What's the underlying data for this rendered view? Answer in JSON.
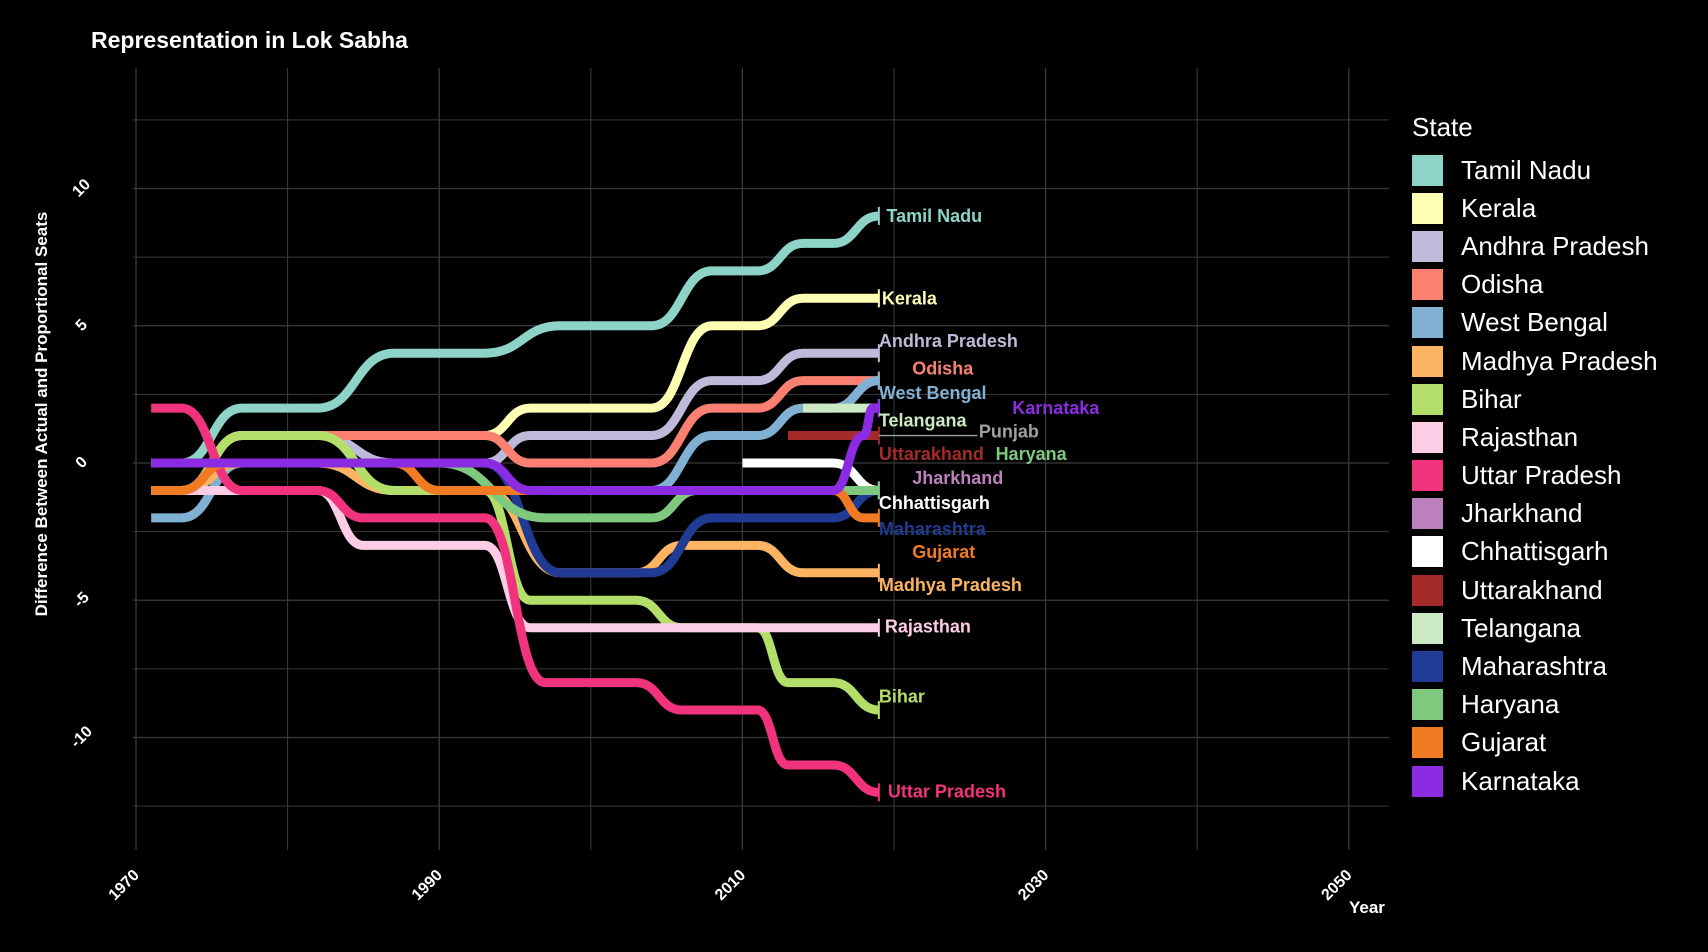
{
  "colors": {
    "background": "#000000",
    "grid": "#3b3b3b",
    "text": "#ffffff"
  },
  "chart_data": {
    "type": "line",
    "title": "Representation in Lok Sabha",
    "xlabel": "Year",
    "ylabel": "Difference Between Actual and Proportional Seats",
    "xlim": [
      1967,
      2053
    ],
    "ylim": [
      -13.5,
      13
    ],
    "xticks": [
      "1970",
      "1990",
      "2010",
      "2030",
      "2050"
    ],
    "yticks": [
      "10",
      "5",
      "0",
      "-5",
      "-10"
    ],
    "grid": true,
    "legend_title": "State",
    "legend_position": "right",
    "series": [
      {
        "name": "Tamil Nadu",
        "color": "#8dd3c7",
        "points": [
          [
            1971,
            0
          ],
          [
            1973,
            0
          ],
          [
            1977,
            2
          ],
          [
            1982,
            2
          ],
          [
            1987,
            4
          ],
          [
            1993,
            4
          ],
          [
            1998,
            5
          ],
          [
            2004,
            5
          ],
          [
            2008,
            7
          ],
          [
            2011,
            7
          ],
          [
            2014,
            8
          ],
          [
            2016,
            8
          ],
          [
            2019,
            9
          ]
        ]
      },
      {
        "name": "Kerala",
        "color": "#ffffb3",
        "points": [
          [
            1971,
            -1
          ],
          [
            1973,
            -1
          ],
          [
            1977,
            1
          ],
          [
            1993,
            1
          ],
          [
            1996,
            2
          ],
          [
            2004,
            2
          ],
          [
            2008,
            5
          ],
          [
            2011,
            5
          ],
          [
            2014,
            6
          ],
          [
            2019,
            6
          ]
        ]
      },
      {
        "name": "Andhra Pradesh",
        "color": "#bebada",
        "points": [
          [
            1971,
            -1
          ],
          [
            1973,
            -1
          ],
          [
            1977,
            1
          ],
          [
            1982,
            1
          ],
          [
            1987,
            0
          ],
          [
            1993,
            0
          ],
          [
            1996,
            1
          ],
          [
            2004,
            1
          ],
          [
            2008,
            3
          ],
          [
            2011,
            3
          ],
          [
            2014,
            4
          ],
          [
            2019,
            4
          ]
        ]
      },
      {
        "name": "Odisha",
        "color": "#fb8072",
        "points": [
          [
            1971,
            -1
          ],
          [
            1973,
            -1
          ],
          [
            1977,
            1
          ],
          [
            1993,
            1
          ],
          [
            1996,
            0
          ],
          [
            2004,
            0
          ],
          [
            2008,
            2
          ],
          [
            2011,
            2
          ],
          [
            2014,
            3
          ],
          [
            2019,
            3
          ]
        ]
      },
      {
        "name": "West Bengal",
        "color": "#80b1d3",
        "points": [
          [
            1971,
            -2
          ],
          [
            1973,
            -2
          ],
          [
            1977,
            0
          ],
          [
            1982,
            0
          ],
          [
            1987,
            -1
          ],
          [
            2004,
            -1
          ],
          [
            2008,
            1
          ],
          [
            2011,
            1
          ],
          [
            2014,
            2
          ],
          [
            2016,
            2
          ],
          [
            2019,
            3
          ]
        ]
      },
      {
        "name": "Madhya Pradesh",
        "color": "#fdb462",
        "points": [
          [
            1971,
            -1
          ],
          [
            1973,
            -1
          ],
          [
            1977,
            0
          ],
          [
            1982,
            0
          ],
          [
            1987,
            -1
          ],
          [
            1993,
            -1
          ],
          [
            1998,
            -4
          ],
          [
            2003,
            -4
          ],
          [
            2006,
            -3
          ],
          [
            2011,
            -3
          ],
          [
            2014,
            -4
          ],
          [
            2019,
            -4
          ]
        ]
      },
      {
        "name": "Bihar",
        "color": "#b3de69",
        "points": [
          [
            1971,
            -1
          ],
          [
            1973,
            -1
          ],
          [
            1977,
            1
          ],
          [
            1982,
            1
          ],
          [
            1987,
            -1
          ],
          [
            1993,
            -1
          ],
          [
            1996,
            -5
          ],
          [
            2003,
            -5
          ],
          [
            2006,
            -6
          ],
          [
            2011,
            -6
          ],
          [
            2013,
            -8
          ],
          [
            2016,
            -8
          ],
          [
            2019,
            -9
          ]
        ]
      },
      {
        "name": "Rajasthan",
        "color": "#fccde5",
        "points": [
          [
            1971,
            -1
          ],
          [
            1973,
            -1
          ],
          [
            1977,
            -1
          ],
          [
            1982,
            -1
          ],
          [
            1985,
            -3
          ],
          [
            1993,
            -3
          ],
          [
            1996,
            -6
          ],
          [
            2019,
            -6
          ]
        ]
      },
      {
        "name": "Uttar Pradesh",
        "color": "#f0337c",
        "points": [
          [
            1971,
            2
          ],
          [
            1973,
            2
          ],
          [
            1977,
            -1
          ],
          [
            1982,
            -1
          ],
          [
            1985,
            -2
          ],
          [
            1993,
            -2
          ],
          [
            1997,
            -8
          ],
          [
            2003,
            -8
          ],
          [
            2006,
            -9
          ],
          [
            2011,
            -9
          ],
          [
            2013,
            -11
          ],
          [
            2016,
            -11
          ],
          [
            2019,
            -12
          ]
        ]
      },
      {
        "name": "Jharkhand",
        "color": "#bc80bd",
        "points": [
          [
            2000,
            -1
          ],
          [
            2019,
            -1
          ]
        ]
      },
      {
        "name": "Chhattisgarh",
        "color": "#ffffff",
        "points": [
          [
            2010,
            0
          ],
          [
            2016,
            0
          ],
          [
            2019,
            -1
          ]
        ]
      },
      {
        "name": "Uttarakhand",
        "color": "#a52a2a",
        "points": [
          [
            2013,
            1
          ],
          [
            2019,
            1
          ]
        ]
      },
      {
        "name": "Telangana",
        "color": "#ccebc5",
        "points": [
          [
            2014,
            2
          ],
          [
            2019,
            2
          ]
        ]
      },
      {
        "name": "Maharashtra",
        "color": "#1f3b94",
        "points": [
          [
            1971,
            0
          ],
          [
            1993,
            0
          ],
          [
            1998,
            -4
          ],
          [
            2004,
            -4
          ],
          [
            2008,
            -2
          ],
          [
            2016,
            -2
          ],
          [
            2019,
            -1
          ]
        ]
      },
      {
        "name": "Haryana",
        "color": "#7fc97f",
        "points": [
          [
            1971,
            0
          ],
          [
            1990,
            0
          ],
          [
            1997,
            -2
          ],
          [
            2004,
            -2
          ],
          [
            2007,
            -1
          ],
          [
            2019,
            -1
          ]
        ]
      },
      {
        "name": "Gujarat",
        "color": "#f17b23",
        "points": [
          [
            1971,
            -1
          ],
          [
            1973,
            -1
          ],
          [
            1976,
            0
          ],
          [
            1987,
            0
          ],
          [
            1990,
            -1
          ],
          [
            2016,
            -1
          ],
          [
            2018,
            -2
          ],
          [
            2019,
            -2
          ]
        ]
      },
      {
        "name": "Karnataka",
        "color": "#8b2be2",
        "points": [
          [
            1971,
            0
          ],
          [
            1985,
            0
          ],
          [
            1988,
            0
          ],
          [
            1993,
            0
          ],
          [
            1996,
            -1
          ],
          [
            2016,
            -1
          ],
          [
            2018,
            1
          ],
          [
            2018.6,
            2
          ],
          [
            2019,
            2
          ]
        ]
      }
    ],
    "labels": [
      {
        "text": "Tamil Nadu",
        "color": "#8dd3c7",
        "x": 2019.5,
        "y": 9
      },
      {
        "text": "Kerala",
        "color": "#ffffb3",
        "x": 2019.2,
        "y": 6
      },
      {
        "text": "Andhra Pradesh",
        "color": "#bebada",
        "x": 2019,
        "y": 4.45
      },
      {
        "text": "Odisha",
        "color": "#fb8072",
        "x": 2021.2,
        "y": 3.45
      },
      {
        "text": "West Bengal",
        "color": "#80b1d3",
        "x": 2019,
        "y": 2.55
      },
      {
        "text": "Karnataka",
        "color": "#8b2be2",
        "x": 2027.8,
        "y": 2.0
      },
      {
        "text": "Telangana",
        "color": "#ccebc5",
        "x": 2019,
        "y": 1.55
      },
      {
        "text": "Punjab",
        "color": "#a0a0a0",
        "x": 2025.6,
        "y": 1.15
      },
      {
        "text": "Uttarakhand",
        "color": "#a52a2a",
        "x": 2019,
        "y": 0.32
      },
      {
        "text": "Haryana",
        "color": "#7fc97f",
        "x": 2026.7,
        "y": 0.32
      },
      {
        "text": "Jharkhand",
        "color": "#bc80bd",
        "x": 2021.2,
        "y": -0.55
      },
      {
        "text": "Chhattisgarh",
        "color": "#ffffff",
        "x": 2019,
        "y": -1.45
      },
      {
        "text": "Maharashtra",
        "color": "#1f3b94",
        "x": 2019,
        "y": -2.4
      },
      {
        "text": "Gujarat",
        "color": "#f17b23",
        "x": 2021.2,
        "y": -3.25
      },
      {
        "text": "Madhya Pradesh",
        "color": "#fdb462",
        "x": 2019,
        "y": -4.45
      },
      {
        "text": "Rajasthan",
        "color": "#fccde5",
        "x": 2019.4,
        "y": -5.95
      },
      {
        "text": "Bihar",
        "color": "#b3de69",
        "x": 2019,
        "y": -8.5
      },
      {
        "text": "Uttar Pradesh",
        "color": "#f0337c",
        "x": 2019.6,
        "y": -11.97
      }
    ],
    "punjab_segment": {
      "color": "#a0a0a0",
      "y": 1
    }
  }
}
